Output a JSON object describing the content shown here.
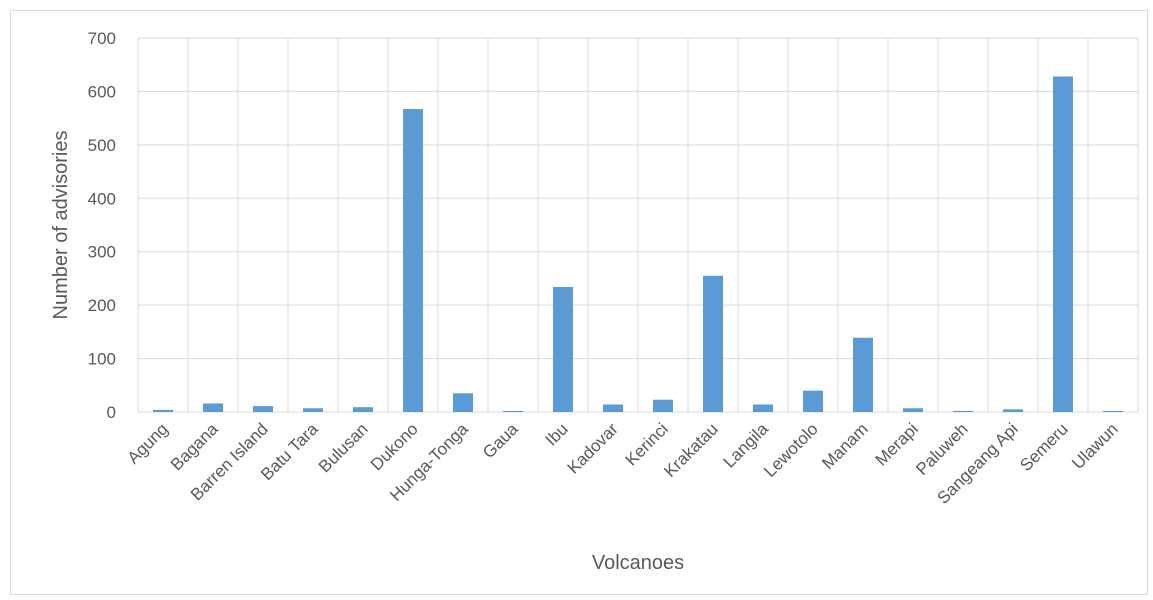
{
  "chart_data": {
    "type": "bar",
    "title": "",
    "xlabel": "Volcanoes",
    "ylabel": "Number of advisories",
    "categories": [
      "Agung",
      "Bagana",
      "Barren Island",
      "Batu Tara",
      "Bulusan",
      "Dukono",
      "Hunga-Tonga",
      "Gaua",
      "Ibu",
      "Kadovar",
      "Kerinci",
      "Krakatau",
      "Langila",
      "Lewotolo",
      "Manam",
      "Merapi",
      "Paluweh",
      "Sangeang Api",
      "Semeru",
      "Ulawun"
    ],
    "values": [
      4,
      16,
      11,
      7,
      9,
      567,
      35,
      2,
      234,
      14,
      23,
      255,
      14,
      40,
      139,
      7,
      2,
      5,
      628,
      2
    ],
    "ylim": [
      0,
      700
    ],
    "yticks": [
      0,
      100,
      200,
      300,
      400,
      500,
      600,
      700
    ],
    "grid": true,
    "bar_color": "#5b9bd5",
    "grid_color": "#d9d9d9"
  }
}
